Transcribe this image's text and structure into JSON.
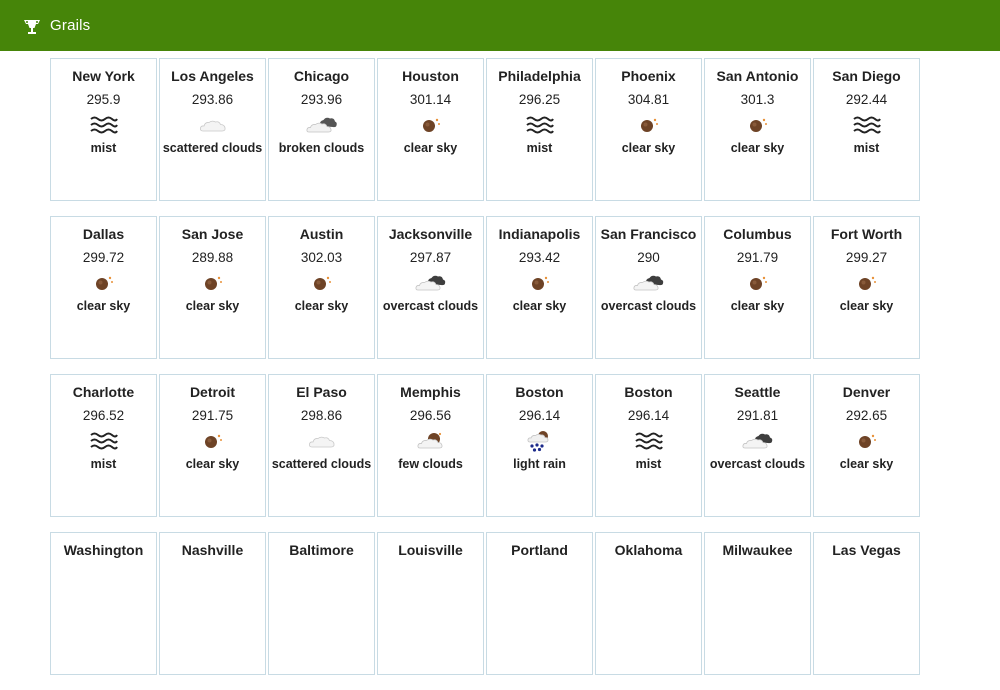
{
  "brand": {
    "label": "Grails",
    "icon": "grails-logo-icon"
  },
  "rows": [
    [
      {
        "city": "New York",
        "temp": "295.9",
        "desc": "mist",
        "icon": "mist"
      },
      {
        "city": "Los Angeles",
        "temp": "293.86",
        "desc": "scattered clouds",
        "icon": "scattered-clouds"
      },
      {
        "city": "Chicago",
        "temp": "293.96",
        "desc": "broken clouds",
        "icon": "broken-clouds"
      },
      {
        "city": "Houston",
        "temp": "301.14",
        "desc": "clear sky",
        "icon": "clear-sky"
      },
      {
        "city": "Philadelphia",
        "temp": "296.25",
        "desc": "mist",
        "icon": "mist"
      },
      {
        "city": "Phoenix",
        "temp": "304.81",
        "desc": "clear sky",
        "icon": "clear-sky"
      },
      {
        "city": "San Antonio",
        "temp": "301.3",
        "desc": "clear sky",
        "icon": "clear-sky"
      },
      {
        "city": "San Diego",
        "temp": "292.44",
        "desc": "mist",
        "icon": "mist"
      }
    ],
    [
      {
        "city": "Dallas",
        "temp": "299.72",
        "desc": "clear sky",
        "icon": "clear-sky"
      },
      {
        "city": "San Jose",
        "temp": "289.88",
        "desc": "clear sky",
        "icon": "clear-sky"
      },
      {
        "city": "Austin",
        "temp": "302.03",
        "desc": "clear sky",
        "icon": "clear-sky"
      },
      {
        "city": "Jacksonville",
        "temp": "297.87",
        "desc": "overcast clouds",
        "icon": "overcast-clouds"
      },
      {
        "city": "Indianapolis",
        "temp": "293.42",
        "desc": "clear sky",
        "icon": "clear-sky"
      },
      {
        "city": "San Francisco",
        "temp": "290",
        "desc": "overcast clouds",
        "icon": "overcast-clouds"
      },
      {
        "city": "Columbus",
        "temp": "291.79",
        "desc": "clear sky",
        "icon": "clear-sky"
      },
      {
        "city": "Fort Worth",
        "temp": "299.27",
        "desc": "clear sky",
        "icon": "clear-sky"
      }
    ],
    [
      {
        "city": "Charlotte",
        "temp": "296.52",
        "desc": "mist",
        "icon": "mist"
      },
      {
        "city": "Detroit",
        "temp": "291.75",
        "desc": "clear sky",
        "icon": "clear-sky"
      },
      {
        "city": "El Paso",
        "temp": "298.86",
        "desc": "scattered clouds",
        "icon": "scattered-clouds"
      },
      {
        "city": "Memphis",
        "temp": "296.56",
        "desc": "few clouds",
        "icon": "few-clouds"
      },
      {
        "city": "Boston",
        "temp": "296.14",
        "desc": "light rain",
        "icon": "light-rain"
      },
      {
        "city": "Boston",
        "temp": "296.14",
        "desc": "mist",
        "icon": "mist"
      },
      {
        "city": "Seattle",
        "temp": "291.81",
        "desc": "overcast clouds",
        "icon": "overcast-clouds"
      },
      {
        "city": "Denver",
        "temp": "292.65",
        "desc": "clear sky",
        "icon": "clear-sky"
      }
    ],
    [
      {
        "city": "Washington",
        "temp": "",
        "desc": "",
        "icon": ""
      },
      {
        "city": "Nashville",
        "temp": "",
        "desc": "",
        "icon": ""
      },
      {
        "city": "Baltimore",
        "temp": "",
        "desc": "",
        "icon": ""
      },
      {
        "city": "Louisville",
        "temp": "",
        "desc": "",
        "icon": ""
      },
      {
        "city": "Portland",
        "temp": "",
        "desc": "",
        "icon": ""
      },
      {
        "city": "Oklahoma",
        "temp": "",
        "desc": "",
        "icon": ""
      },
      {
        "city": "Milwaukee",
        "temp": "",
        "desc": "",
        "icon": ""
      },
      {
        "city": "Las Vegas",
        "temp": "",
        "desc": "",
        "icon": ""
      }
    ]
  ],
  "colors": {
    "navbar": "#468509",
    "card_border": "#c8dbe4",
    "sun": "#7a4a2a"
  }
}
